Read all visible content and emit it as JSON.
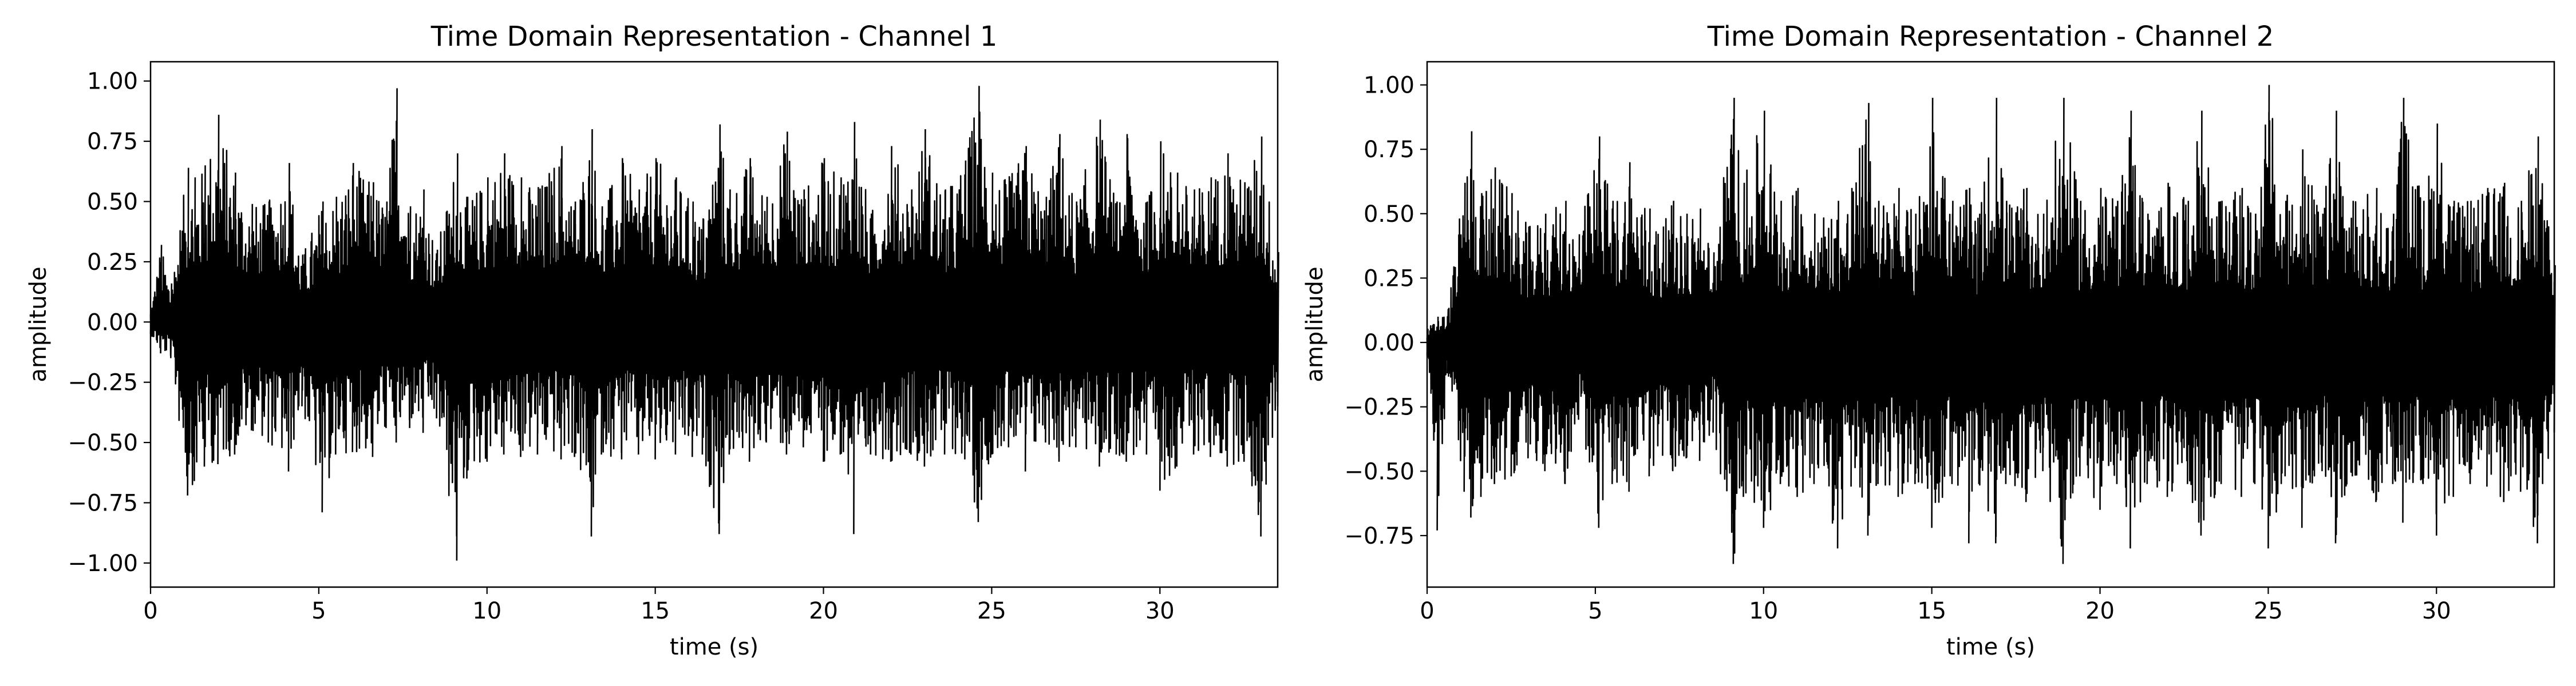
{
  "chart_data": [
    {
      "type": "line",
      "title": "Time Domain Representation - Channel 1",
      "xlabel": "time (s)",
      "ylabel": "amplitude",
      "xlim": [
        0,
        33.5
      ],
      "ylim": [
        -1.1,
        1.08
      ],
      "xticks": [
        0,
        5,
        10,
        15,
        20,
        25,
        30
      ],
      "xtick_labels": [
        "0",
        "5",
        "10",
        "15",
        "20",
        "25",
        "30"
      ],
      "yticks": [
        1.0,
        0.75,
        0.5,
        0.25,
        0.0,
        -0.25,
        -0.5,
        -0.75,
        -1.0
      ],
      "ytick_labels": [
        "1.00",
        "0.75",
        "0.50",
        "0.25",
        "0.00",
        "−0.25",
        "−0.50",
        "−0.75",
        "−1.00"
      ],
      "grid": false,
      "line_color": "#000000",
      "series": [
        {
          "x": [
            0,
            0.3,
            0.6,
            1.1,
            1.3,
            1.6,
            2.0,
            2.5,
            3.0,
            3.5,
            4.1,
            4.5,
            5.1,
            5.5,
            6.0,
            6.6,
            7.0,
            7.3,
            7.7,
            8.1,
            8.5,
            9.1,
            9.4,
            10.0,
            10.5,
            11.0,
            11.5,
            12.2,
            12.6,
            13.1,
            13.4,
            14.0,
            14.5,
            15.0,
            15.6,
            16.1,
            16.4,
            16.9,
            17.2,
            17.8,
            18.3,
            18.9,
            19.4,
            20.0,
            20.5,
            20.9,
            21.4,
            22.0,
            22.6,
            23.0,
            23.6,
            24.2,
            24.6,
            25.0,
            25.5,
            26.0,
            26.6,
            27.0,
            27.5,
            28.2,
            28.7,
            29.0,
            29.6,
            30.0,
            30.5,
            31.0,
            31.5,
            32.0,
            32.5,
            33.0,
            33.5
          ],
          "y_max": [
            0.05,
            0.32,
            0.16,
            0.64,
            0.6,
            0.65,
            0.86,
            0.62,
            0.49,
            0.5,
            0.66,
            0.28,
            0.5,
            0.52,
            0.66,
            0.58,
            0.5,
            0.97,
            0.48,
            0.55,
            0.3,
            0.7,
            0.52,
            0.6,
            0.7,
            0.6,
            0.56,
            0.73,
            0.5,
            0.8,
            0.48,
            0.68,
            0.55,
            0.68,
            0.6,
            0.5,
            0.43,
            0.82,
            0.55,
            0.68,
            0.52,
            0.79,
            0.55,
            0.68,
            0.6,
            0.83,
            0.45,
            0.73,
            0.55,
            0.8,
            0.55,
            0.67,
            0.98,
            0.62,
            0.6,
            0.73,
            0.52,
            0.78,
            0.5,
            0.84,
            0.5,
            0.78,
            0.5,
            0.75,
            0.62,
            0.55,
            0.6,
            0.7,
            0.58,
            0.77,
            0.29
          ],
          "y_min": [
            -0.05,
            -0.13,
            -0.15,
            -0.72,
            -0.66,
            -0.6,
            -0.59,
            -0.55,
            -0.45,
            -0.5,
            -0.62,
            -0.35,
            -0.79,
            -0.55,
            -0.54,
            -0.56,
            -0.44,
            -0.5,
            -0.44,
            -0.46,
            -0.4,
            -0.99,
            -0.65,
            -0.58,
            -0.55,
            -0.56,
            -0.55,
            -0.57,
            -0.56,
            -0.89,
            -0.55,
            -0.57,
            -0.55,
            -0.57,
            -0.55,
            -0.56,
            -0.55,
            -0.88,
            -0.55,
            -0.58,
            -0.5,
            -0.55,
            -0.52,
            -0.58,
            -0.55,
            -0.88,
            -0.55,
            -0.58,
            -0.55,
            -0.6,
            -0.55,
            -0.57,
            -0.83,
            -0.55,
            -0.52,
            -0.62,
            -0.5,
            -0.58,
            -0.52,
            -0.6,
            -0.55,
            -0.58,
            -0.55,
            -0.7,
            -0.6,
            -0.55,
            -0.56,
            -0.6,
            -0.58,
            -0.89,
            -0.35
          ]
        }
      ]
    },
    {
      "type": "line",
      "title": "Time Domain Representation - Channel 2",
      "xlabel": "time (s)",
      "ylabel": "amplitude",
      "xlim": [
        0,
        33.5
      ],
      "ylim": [
        -0.95,
        1.09
      ],
      "xticks": [
        0,
        5,
        10,
        15,
        20,
        25,
        30
      ],
      "xtick_labels": [
        "0",
        "5",
        "10",
        "15",
        "20",
        "25",
        "30"
      ],
      "yticks": [
        1.0,
        0.75,
        0.5,
        0.25,
        0.0,
        -0.25,
        -0.5,
        -0.75
      ],
      "ytick_labels": [
        "1.00",
        "0.75",
        "0.50",
        "0.25",
        "0.00",
        "−0.25",
        "−0.50",
        "−0.75"
      ],
      "grid": false,
      "line_color": "#000000",
      "series": [
        {
          "x": [
            0,
            0.3,
            0.6,
            1.1,
            1.3,
            1.6,
            2.0,
            2.5,
            3.0,
            3.5,
            4.1,
            4.5,
            5.1,
            5.5,
            6.0,
            6.6,
            7.0,
            7.3,
            7.7,
            8.1,
            8.5,
            9.1,
            9.4,
            10.0,
            10.5,
            11.0,
            11.5,
            12.2,
            12.6,
            13.1,
            13.4,
            14.0,
            14.5,
            15.0,
            15.6,
            16.1,
            16.4,
            16.9,
            17.2,
            17.8,
            18.3,
            18.9,
            19.4,
            20.0,
            20.5,
            20.9,
            21.4,
            22.0,
            22.6,
            23.0,
            23.6,
            24.2,
            24.6,
            25.0,
            25.5,
            26.0,
            26.6,
            27.0,
            27.5,
            28.2,
            28.7,
            29.0,
            29.6,
            30.0,
            30.5,
            31.0,
            31.5,
            32.0,
            32.5,
            33.0,
            33.5
          ],
          "y_max": [
            0.05,
            0.1,
            0.12,
            0.62,
            0.82,
            0.58,
            0.68,
            0.58,
            0.45,
            0.5,
            0.55,
            0.42,
            0.8,
            0.55,
            0.7,
            0.52,
            0.45,
            0.55,
            0.5,
            0.52,
            0.35,
            0.95,
            0.62,
            0.9,
            0.55,
            0.6,
            0.5,
            0.55,
            0.6,
            0.93,
            0.55,
            0.6,
            0.5,
            0.95,
            0.55,
            0.6,
            0.5,
            0.95,
            0.55,
            0.6,
            0.5,
            0.95,
            0.55,
            0.6,
            0.55,
            0.9,
            0.5,
            0.62,
            0.55,
            0.9,
            0.55,
            0.6,
            0.5,
            1.0,
            0.55,
            0.75,
            0.5,
            0.9,
            0.55,
            0.6,
            0.5,
            0.95,
            0.55,
            0.85,
            0.55,
            0.55,
            0.6,
            0.62,
            0.55,
            0.8,
            0.3
          ],
          "y_min": [
            -0.05,
            -0.73,
            -0.12,
            -0.58,
            -0.68,
            -0.6,
            -0.55,
            -0.52,
            -0.45,
            -0.5,
            -0.55,
            -0.3,
            -0.72,
            -0.55,
            -0.58,
            -0.52,
            -0.44,
            -0.5,
            -0.45,
            -0.46,
            -0.35,
            -0.86,
            -0.6,
            -0.72,
            -0.55,
            -0.6,
            -0.55,
            -0.8,
            -0.56,
            -0.75,
            -0.55,
            -0.6,
            -0.55,
            -0.72,
            -0.55,
            -0.78,
            -0.55,
            -0.78,
            -0.55,
            -0.62,
            -0.5,
            -0.86,
            -0.52,
            -0.65,
            -0.55,
            -0.8,
            -0.55,
            -0.6,
            -0.55,
            -0.75,
            -0.55,
            -0.6,
            -0.55,
            -0.8,
            -0.52,
            -0.72,
            -0.5,
            -0.78,
            -0.52,
            -0.62,
            -0.55,
            -0.7,
            -0.55,
            -0.75,
            -0.6,
            -0.55,
            -0.56,
            -0.62,
            -0.58,
            -0.78,
            -0.35
          ]
        }
      ]
    }
  ]
}
